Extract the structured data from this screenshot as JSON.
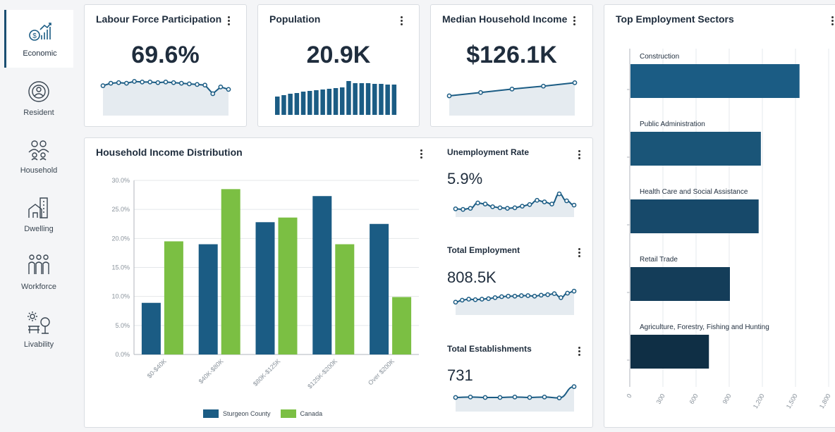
{
  "sidebar": {
    "items": [
      {
        "label": "Economic",
        "icon": "economic-chart-icon",
        "active": true
      },
      {
        "label": "Resident",
        "icon": "resident-icon",
        "active": false
      },
      {
        "label": "Household",
        "icon": "household-icon",
        "active": false
      },
      {
        "label": "Dwelling",
        "icon": "dwelling-icon",
        "active": false
      },
      {
        "label": "Workforce",
        "icon": "workforce-icon",
        "active": false
      },
      {
        "label": "Livability",
        "icon": "livability-icon",
        "active": false
      }
    ]
  },
  "kpis": {
    "labour": {
      "title": "Labour Force Participation",
      "value": "69.6%",
      "spark": [
        44,
        48,
        49,
        48,
        51,
        50,
        50,
        49,
        50,
        49,
        48,
        47,
        46,
        45,
        31,
        42,
        38
      ]
    },
    "population": {
      "title": "Population",
      "value": "20.9K",
      "bars": [
        26,
        28,
        30,
        31,
        33,
        34,
        35,
        36,
        37,
        38,
        39,
        48,
        45,
        45,
        45,
        44,
        44,
        43,
        43
      ]
    },
    "income": {
      "title": "Median Household Income",
      "value": "$126.1K",
      "spark": [
        40,
        48,
        56,
        63,
        71
      ]
    },
    "unemployment": {
      "title": "Unemployment Rate",
      "value": "5.9%",
      "spark": [
        20,
        19,
        21,
        31,
        29,
        24,
        22,
        21,
        22,
        25,
        28,
        36,
        33,
        29,
        48,
        35,
        27
      ]
    },
    "employment": {
      "title": "Total Employment",
      "value": "808.5K",
      "spark": [
        30,
        34,
        36,
        35,
        36,
        37,
        39,
        41,
        42,
        42,
        43,
        43,
        42,
        44,
        45,
        47,
        39,
        48,
        52
      ]
    },
    "establishments": {
      "title": "Total Establishments",
      "value": "731",
      "spark": [
        35,
        36,
        35,
        35,
        36,
        35,
        36,
        34,
        59
      ]
    }
  },
  "income_dist": {
    "title": "Household Income Distribution",
    "chart_data": {
      "type": "bar",
      "categories": [
        "$0-$40K",
        "$40K-$80K",
        "$80K-$125K",
        "$125K-$200K",
        "Over $200K"
      ],
      "series": [
        {
          "name": "Sturgeon County",
          "values": [
            8.9,
            19.0,
            22.8,
            27.3,
            22.5
          ],
          "color": "#1b5c84"
        },
        {
          "name": "Canada",
          "values": [
            19.5,
            28.5,
            23.6,
            19.0,
            9.9
          ],
          "color": "#7bbf43"
        }
      ],
      "y_ticks": [
        "0.0%",
        "5.0%",
        "10.0%",
        "15.0%",
        "20.0%",
        "25.0%",
        "30.0%"
      ],
      "ylim": [
        0,
        30
      ],
      "grid": true,
      "legend": "bottom"
    }
  },
  "sectors": {
    "title": "Top Employment Sectors",
    "chart_data": {
      "type": "bar",
      "orientation": "horizontal",
      "categories": [
        "Construction",
        "Public Administration",
        "Health Care and Social Assistance",
        "Retail Trade",
        "Agriculture, Forestry, Fishing and Hunting"
      ],
      "values": [
        1530,
        1180,
        1160,
        900,
        710
      ],
      "colors": [
        "#1b5c84",
        "#1a5578",
        "#17496a",
        "#143d59",
        "#0f2f45"
      ],
      "x_ticks": [
        "0",
        "300",
        "600",
        "900",
        "1,200",
        "1,500",
        "1,800"
      ],
      "xlim": [
        0,
        1800
      ],
      "grid": true
    }
  },
  "colors": {
    "accent": "#1b5c84",
    "canada": "#7bbf43",
    "spark_fill": "#e5ebf0"
  }
}
